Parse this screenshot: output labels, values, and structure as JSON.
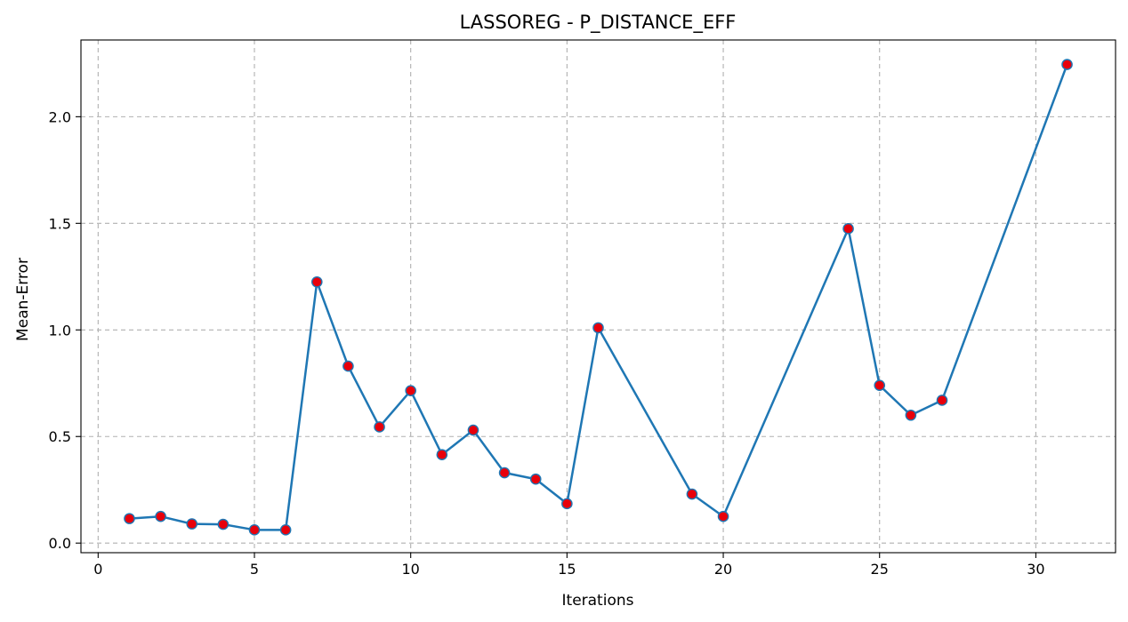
{
  "chart_data": {
    "type": "line",
    "title": "LASSOREG - P_DISTANCE_EFF",
    "xlabel": "Iterations",
    "ylabel": "Mean-Error",
    "xlim": [
      -0.55,
      32.55
    ],
    "ylim": [
      -0.045,
      2.36
    ],
    "xticks": [
      0,
      5,
      10,
      15,
      20,
      25,
      30
    ],
    "yticks": [
      0.0,
      0.5,
      1.0,
      1.5,
      2.0
    ],
    "grid": true,
    "line_color": "#1f77b4",
    "marker_color": "#e8000b",
    "series": [
      {
        "x": [
          1,
          2,
          3,
          4,
          5,
          6,
          7,
          8,
          9,
          10,
          11,
          12,
          13,
          14,
          15,
          16,
          19,
          20,
          24,
          25,
          26,
          27,
          31
        ],
        "values": [
          0.115,
          0.125,
          0.09,
          0.088,
          0.062,
          0.062,
          1.225,
          0.83,
          0.545,
          0.715,
          0.415,
          0.53,
          0.33,
          0.3,
          0.185,
          1.01,
          0.23,
          0.125,
          1.475,
          0.74,
          0.6,
          0.67,
          2.245
        ]
      }
    ]
  }
}
